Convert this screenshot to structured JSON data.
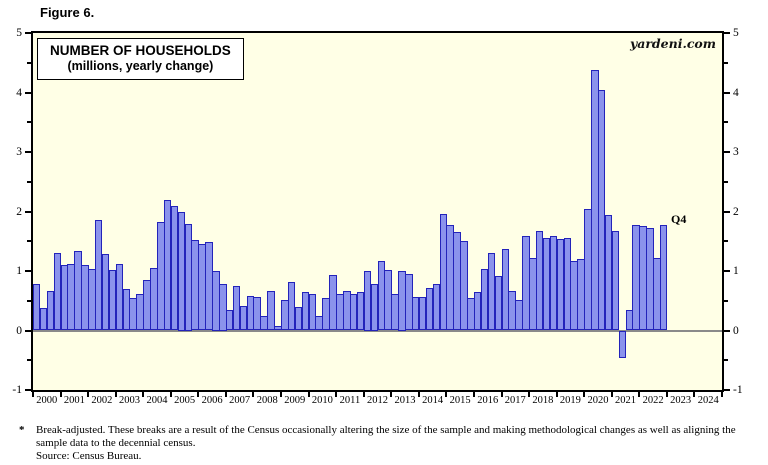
{
  "figure_label": "Figure 6.",
  "branding": "yardeni.com",
  "legend": {
    "title": "NUMBER OF HOUSEHOLDS",
    "subtitle": "(millions, yearly change)"
  },
  "annotation": "Q4",
  "footnote": {
    "marker": "*",
    "text": "Break-adjusted. These breaks are a result of the Census occasionally altering the size of the sample and making methodological changes as well as aligning the sample data to the decennial census.",
    "source": "Source: Census Bureau."
  },
  "colors": {
    "bar_fill": "#8b93ec",
    "bar_border": "#2323ba",
    "plot_bg": "#ffffe6",
    "zero_line": "#8a8a8a",
    "frame": "#000000"
  },
  "chart_data": {
    "type": "bar",
    "title": "NUMBER OF HOUSEHOLDS (millions, yearly change)",
    "ylabel": "millions, yearly change",
    "ylim": [
      -1,
      5
    ],
    "y_major_ticks": [
      5,
      4,
      3,
      2,
      1,
      0,
      -1
    ],
    "y_minor_ticks": [
      4.5,
      3.5,
      2.5,
      1.5,
      0.5,
      -0.5
    ],
    "grid": false,
    "legend_position": "top-left",
    "x_axis_years": [
      "2000",
      "2001",
      "2002",
      "2003",
      "2004",
      "2005",
      "2006",
      "2007",
      "2008",
      "2009",
      "2010",
      "2011",
      "2012",
      "2013",
      "2014",
      "2015",
      "2016",
      "2017",
      "2018",
      "2019",
      "2020",
      "2021",
      "2022",
      "2023",
      "2024"
    ],
    "series_start": "2000-Q1",
    "series_end": "2022-Q4",
    "frequency": "quarterly",
    "last_point_label": "Q4",
    "values": [
      0.78,
      0.38,
      0.67,
      1.3,
      1.1,
      1.12,
      1.33,
      1.1,
      1.03,
      1.85,
      1.28,
      1.02,
      1.12,
      0.7,
      0.55,
      0.62,
      0.85,
      1.05,
      1.83,
      2.2,
      2.1,
      2.0,
      1.79,
      1.52,
      1.46,
      1.48,
      1.0,
      0.79,
      0.35,
      0.74,
      0.42,
      0.58,
      0.56,
      0.24,
      0.66,
      0.08,
      0.51,
      0.82,
      0.4,
      0.65,
      0.62,
      0.24,
      0.54,
      0.94,
      0.61,
      0.66,
      0.62,
      0.64,
      1.0,
      0.79,
      1.17,
      1.01,
      0.61,
      1.0,
      0.95,
      0.57,
      0.56,
      0.72,
      0.78,
      1.96,
      1.77,
      1.66,
      1.51,
      0.55,
      0.64,
      1.04,
      1.31,
      0.92,
      1.37,
      0.66,
      0.52,
      1.58,
      1.22,
      1.68,
      1.56,
      1.58,
      1.54,
      1.56,
      1.16,
      1.2,
      2.04,
      4.38,
      4.04,
      1.94,
      1.67,
      -0.47,
      0.35,
      1.77,
      1.76,
      1.72,
      1.22,
      1.78
    ]
  }
}
